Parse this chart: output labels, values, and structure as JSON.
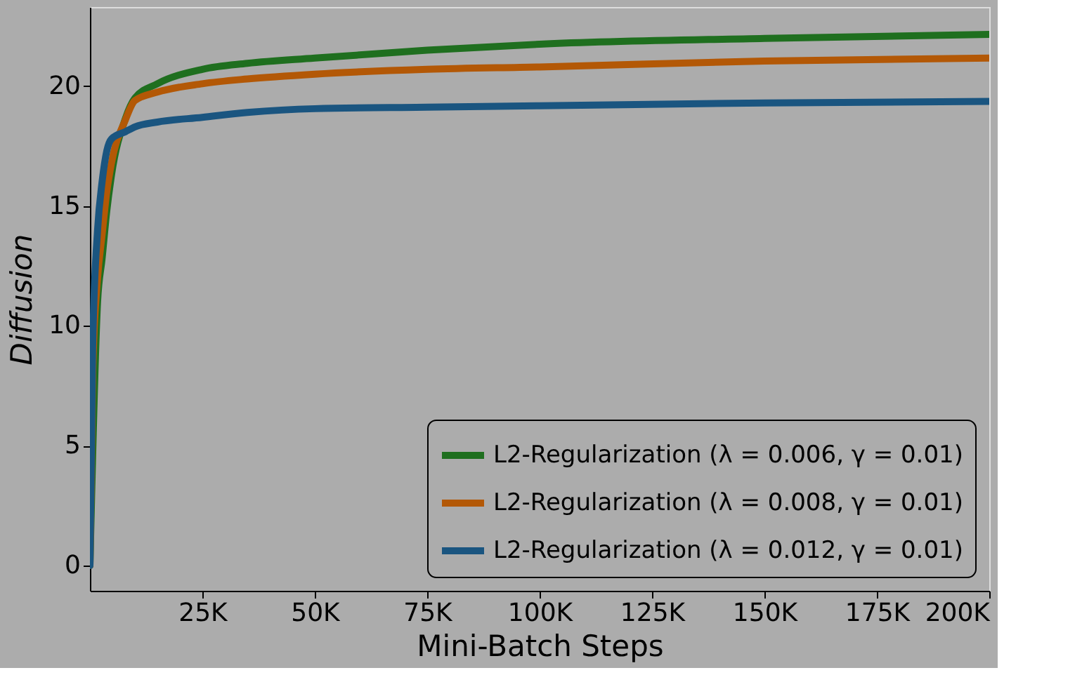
{
  "chart_data": {
    "type": "line",
    "xlabel": "Mini-Batch Steps",
    "ylabel": "Diffusion",
    "xlim": [
      0,
      200000
    ],
    "ylim": [
      -1.05,
      23.3
    ],
    "xticks": [
      {
        "value": 25000,
        "label": "25K"
      },
      {
        "value": 50000,
        "label": "50K"
      },
      {
        "value": 75000,
        "label": "75K"
      },
      {
        "value": 100000,
        "label": "100K"
      },
      {
        "value": 125000,
        "label": "125K"
      },
      {
        "value": 150000,
        "label": "150K"
      },
      {
        "value": 175000,
        "label": "175K"
      },
      {
        "value": 200000,
        "label": "200K"
      }
    ],
    "yticks": [
      0,
      5,
      10,
      15,
      20
    ],
    "grid": false,
    "legend": "bottom right",
    "line_style": "solid",
    "marker": "none",
    "x": [
      0,
      600,
      1700,
      2700,
      3750,
      4800,
      7900,
      10000,
      15000,
      25000,
      35000,
      50000,
      75000,
      100000,
      150000,
      200000
    ],
    "series": [
      {
        "name": "L2-Regularization (λ = 0.006, γ = 0.01)",
        "color": "#1f6f1f",
        "x": [
          0,
          1700,
          2700,
          3750,
          4800,
          7900,
          10000,
          15000,
          25000,
          35000,
          50000,
          75000,
          100000,
          150000,
          200000
        ],
        "values": [
          0,
          11.0,
          12.8,
          14.8,
          16.3,
          18.65,
          19.5,
          20.1,
          20.7,
          20.95,
          21.17,
          21.5,
          21.75,
          21.99,
          22.16
        ]
      },
      {
        "name": "L2-Regularization (λ = 0.008, γ = 0.01)",
        "color": "#b35806",
        "values": [
          0,
          8.0,
          12.0,
          13.8,
          15.6,
          16.8,
          18.6,
          19.4,
          19.75,
          20.1,
          20.3,
          20.5,
          20.7,
          20.8,
          21.05,
          21.17
        ]
      },
      {
        "name": "L2-Regularization (λ = 0.012, γ = 0.01)",
        "color": "#1a5580",
        "values": [
          0,
          9.1,
          14.0,
          16.0,
          17.3,
          17.8,
          18.1,
          18.3,
          18.5,
          18.7,
          18.9,
          19.06,
          19.12,
          19.18,
          19.3,
          19.36
        ]
      }
    ]
  }
}
